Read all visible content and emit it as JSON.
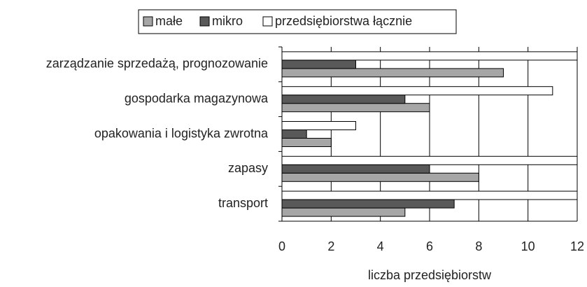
{
  "chart_data": {
    "type": "bar",
    "orientation": "horizontal",
    "categories": [
      "zarządzanie sprzedażą, prognozowanie",
      "gospodarka magazynowa",
      "opakowania i logistyka zwrotna",
      "zapasy",
      "transport"
    ],
    "series": [
      {
        "name": "małe",
        "color": "#a6a6a6",
        "values": [
          9,
          6,
          2,
          8,
          5
        ]
      },
      {
        "name": "mikro",
        "color": "#595959",
        "values": [
          3,
          5,
          1,
          6,
          7
        ]
      },
      {
        "name": "przedsiębiorstwa łącznie",
        "color": "#ffffff",
        "values": [
          12,
          11,
          3,
          12,
          12
        ]
      }
    ],
    "xlabel": "liczba przedsiębiorstw",
    "xlim": [
      0,
      12
    ],
    "xticks": [
      0,
      2,
      4,
      6,
      8,
      10,
      12
    ],
    "grid": true,
    "legend": "top"
  }
}
